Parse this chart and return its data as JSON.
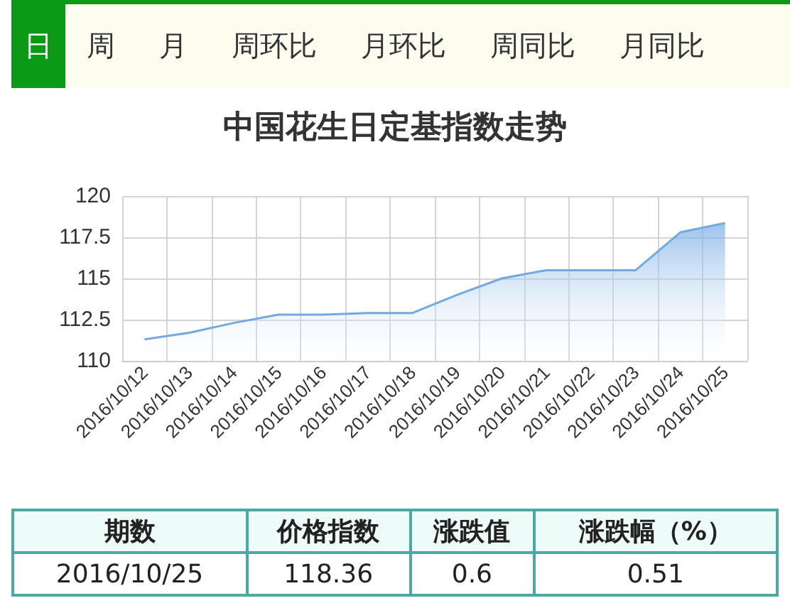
{
  "chart_data": {
    "type": "area",
    "title": "中国花生日定基指数走势",
    "categories": [
      "2016/10/12",
      "2016/10/13",
      "2016/10/14",
      "2016/10/15",
      "2016/10/16",
      "2016/10/17",
      "2016/10/18",
      "2016/10/19",
      "2016/10/20",
      "2016/10/21",
      "2016/10/22",
      "2016/10/23",
      "2016/10/24",
      "2016/10/25"
    ],
    "values": [
      111.3,
      111.7,
      112.3,
      112.8,
      112.8,
      112.9,
      112.9,
      114.0,
      115.0,
      115.5,
      115.5,
      115.5,
      117.8,
      118.36
    ],
    "color": "#72a9e3",
    "ylim": [
      110,
      120
    ],
    "yticks": [
      110,
      112.5,
      115,
      117.5,
      120
    ],
    "grid": true,
    "marker": "none",
    "annotations": [
      "日",
      "周",
      "月",
      "周环比",
      "月环比",
      "周同比",
      "月同比",
      "期数",
      "价格指数",
      "涨跌值",
      "涨跌幅（%）",
      "2016/10/25",
      "118.36",
      "0.6",
      "0.51"
    ]
  }
}
